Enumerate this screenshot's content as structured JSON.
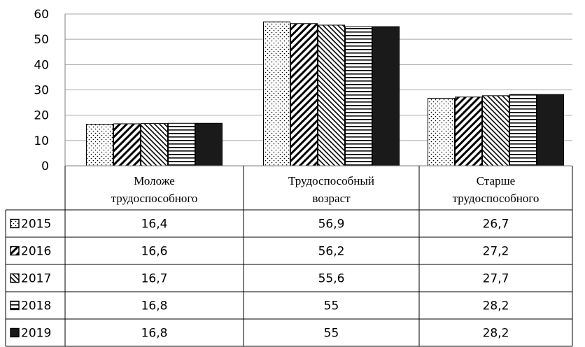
{
  "chart_data": {
    "type": "bar",
    "categories": [
      [
        "Моложе",
        "трудоспособного"
      ],
      [
        "Трудоспособный",
        "возраст"
      ],
      [
        "Старше",
        "трудоспособного"
      ]
    ],
    "series": [
      {
        "name": "2015",
        "pattern": "dots",
        "values": [
          16.4,
          56.9,
          26.7
        ],
        "labels": [
          "16,4",
          "56,9",
          "26,7"
        ]
      },
      {
        "name": "2016",
        "pattern": "diagonal-heavy",
        "values": [
          16.6,
          56.2,
          27.2
        ],
        "labels": [
          "16,6",
          "56,2",
          "27,2"
        ]
      },
      {
        "name": "2017",
        "pattern": "diagonal-light",
        "values": [
          16.7,
          55.6,
          27.7
        ],
        "labels": [
          "16,7",
          "55,6",
          "27,7"
        ]
      },
      {
        "name": "2018",
        "pattern": "horizontal",
        "values": [
          16.8,
          55,
          28.2
        ],
        "labels": [
          "16,8",
          "55",
          "28,2"
        ]
      },
      {
        "name": "2019",
        "pattern": "solid",
        "values": [
          16.8,
          55,
          28.2
        ],
        "labels": [
          "16,8",
          "55",
          "28,2"
        ]
      }
    ],
    "yticks": [
      "0",
      "10",
      "20",
      "30",
      "40",
      "50",
      "60"
    ],
    "ylim": [
      0,
      60
    ],
    "grid": true,
    "legend": "data-table-left",
    "colors": {
      "bar_fill": "#ffffff",
      "bar_stroke": "#000000",
      "solid": "#1a1a1a",
      "grid": "#a6a6a6"
    }
  }
}
